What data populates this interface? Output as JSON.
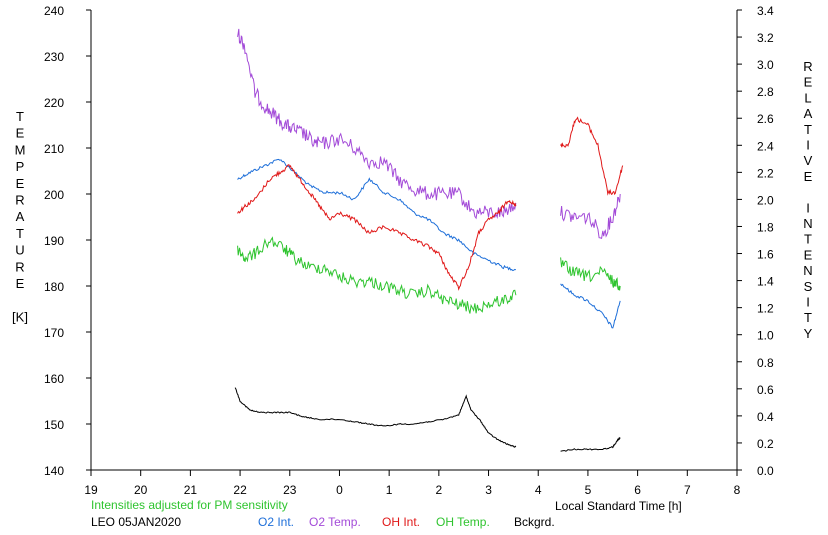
{
  "chart_data": {
    "type": "line",
    "xlabel": "Local Standard Time [h]",
    "ylabel_left": "TEMPERATURE [K]",
    "ylabel_left_letters": [
      "T",
      "E",
      "M",
      "P",
      "E",
      "R",
      "A",
      "T",
      "U",
      "R",
      "E",
      "",
      "[K]"
    ],
    "ylabel_right": "RELATIVE INTENSITY",
    "ylabel_right_letters": [
      "R",
      "E",
      "L",
      "A",
      "T",
      "I",
      "V",
      "E",
      "",
      "I",
      "N",
      "T",
      "E",
      "N",
      "S",
      "I",
      "T",
      "Y"
    ],
    "x_ticks": [
      19,
      20,
      21,
      22,
      23,
      0,
      1,
      2,
      3,
      4,
      5,
      6,
      7,
      8
    ],
    "x_tick_values": [
      19,
      20,
      21,
      22,
      23,
      24,
      25,
      26,
      27,
      28,
      29,
      30,
      31,
      32
    ],
    "xlim": [
      19,
      32
    ],
    "ylim_left": [
      140,
      240
    ],
    "y_ticks_left": [
      140,
      150,
      160,
      170,
      180,
      190,
      200,
      210,
      220,
      230,
      240
    ],
    "ylim_right": [
      0.0,
      3.4
    ],
    "y_ticks_right": [
      "0.0",
      "0.2",
      "0.4",
      "0.6",
      "0.8",
      "1.0",
      "1.2",
      "1.4",
      "1.6",
      "1.8",
      "2.0",
      "2.2",
      "2.4",
      "2.6",
      "2.8",
      "3.0",
      "3.2",
      "3.4"
    ],
    "grid": false,
    "series": [
      {
        "name": "O2 Int.",
        "color": "#1e6fd9",
        "axis": "right",
        "segments": [
          [
            [
              21.95,
              2.15
            ],
            [
              22.2,
              2.2
            ],
            [
              22.5,
              2.25
            ],
            [
              22.8,
              2.3
            ],
            [
              23.1,
              2.2
            ],
            [
              23.4,
              2.1
            ],
            [
              23.7,
              2.05
            ],
            [
              24.0,
              2.05
            ],
            [
              24.3,
              2.0
            ],
            [
              24.6,
              2.15
            ],
            [
              24.9,
              2.05
            ],
            [
              25.2,
              2.0
            ],
            [
              25.5,
              1.9
            ],
            [
              25.8,
              1.85
            ],
            [
              26.1,
              1.75
            ],
            [
              26.4,
              1.7
            ],
            [
              26.7,
              1.6
            ],
            [
              27.0,
              1.55
            ],
            [
              27.3,
              1.5
            ],
            [
              27.55,
              1.48
            ]
          ],
          [
            [
              28.45,
              1.38
            ],
            [
              28.7,
              1.3
            ],
            [
              29.0,
              1.25
            ],
            [
              29.3,
              1.15
            ],
            [
              29.5,
              1.05
            ],
            [
              29.65,
              1.25
            ]
          ]
        ]
      },
      {
        "name": "O2 Temp.",
        "color": "#a34bd8",
        "axis": "left",
        "segments": [
          [
            [
              21.95,
              235
            ],
            [
              22.1,
              232
            ],
            [
              22.3,
              222
            ],
            [
              22.5,
              219
            ],
            [
              22.7,
              217
            ],
            [
              22.9,
              215
            ],
            [
              23.1,
              214
            ],
            [
              23.3,
              213
            ],
            [
              23.5,
              211
            ],
            [
              23.7,
              211
            ],
            [
              24.0,
              212
            ],
            [
              24.3,
              210
            ],
            [
              24.6,
              207
            ],
            [
              24.9,
              207
            ],
            [
              25.2,
              203
            ],
            [
              25.5,
              201
            ],
            [
              25.8,
              200
            ],
            [
              26.1,
              200
            ],
            [
              26.4,
              200
            ],
            [
              26.7,
              196
            ],
            [
              27.0,
              196
            ],
            [
              27.3,
              196
            ],
            [
              27.55,
              198
            ]
          ],
          [
            [
              28.45,
              196
            ],
            [
              28.7,
              195
            ],
            [
              29.0,
              195
            ],
            [
              29.3,
              191
            ],
            [
              29.5,
              195
            ],
            [
              29.65,
              200
            ]
          ]
        ]
      },
      {
        "name": "OH Int.",
        "color": "#e01818",
        "axis": "right",
        "segments": [
          [
            [
              21.95,
              1.9
            ],
            [
              22.1,
              1.95
            ],
            [
              22.3,
              2.0
            ],
            [
              22.6,
              2.15
            ],
            [
              22.8,
              2.2
            ],
            [
              23.0,
              2.25
            ],
            [
              23.2,
              2.15
            ],
            [
              23.4,
              2.05
            ],
            [
              23.6,
              1.95
            ],
            [
              23.8,
              1.85
            ],
            [
              24.0,
              1.9
            ],
            [
              24.3,
              1.85
            ],
            [
              24.6,
              1.75
            ],
            [
              24.9,
              1.8
            ],
            [
              25.2,
              1.75
            ],
            [
              25.5,
              1.7
            ],
            [
              25.8,
              1.65
            ],
            [
              26.0,
              1.6
            ],
            [
              26.2,
              1.45
            ],
            [
              26.4,
              1.35
            ],
            [
              26.6,
              1.5
            ],
            [
              26.8,
              1.75
            ],
            [
              27.0,
              1.85
            ],
            [
              27.2,
              1.9
            ],
            [
              27.4,
              2.0
            ],
            [
              27.55,
              1.95
            ]
          ],
          [
            [
              28.45,
              2.4
            ],
            [
              28.6,
              2.4
            ],
            [
              28.75,
              2.6
            ],
            [
              29.0,
              2.55
            ],
            [
              29.2,
              2.4
            ],
            [
              29.4,
              2.05
            ],
            [
              29.55,
              2.05
            ],
            [
              29.7,
              2.25
            ]
          ]
        ]
      },
      {
        "name": "OH Temp.",
        "color": "#2fc42f",
        "axis": "left",
        "segments": [
          [
            [
              21.95,
              188
            ],
            [
              22.1,
              186
            ],
            [
              22.3,
              187
            ],
            [
              22.6,
              190
            ],
            [
              22.9,
              188
            ],
            [
              23.1,
              186
            ],
            [
              23.4,
              184
            ],
            [
              23.7,
              184
            ],
            [
              24.0,
              182
            ],
            [
              24.3,
              181
            ],
            [
              24.6,
              181
            ],
            [
              24.9,
              180
            ],
            [
              25.2,
              179
            ],
            [
              25.5,
              178
            ],
            [
              25.8,
              179
            ],
            [
              26.1,
              177
            ],
            [
              26.4,
              176
            ],
            [
              26.7,
              175
            ],
            [
              27.0,
              176
            ],
            [
              27.3,
              177
            ],
            [
              27.55,
              178
            ]
          ],
          [
            [
              28.45,
              185
            ],
            [
              28.7,
              183
            ],
            [
              29.0,
              182
            ],
            [
              29.3,
              183
            ],
            [
              29.5,
              181
            ],
            [
              29.65,
              180
            ]
          ]
        ]
      },
      {
        "name": "Bckgrd.",
        "color": "#000000",
        "axis": "left",
        "segments": [
          [
            [
              21.9,
              158
            ],
            [
              22.0,
              155
            ],
            [
              22.2,
              153
            ],
            [
              22.4,
              152.5
            ],
            [
              22.7,
              152.5
            ],
            [
              23.0,
              152.5
            ],
            [
              23.3,
              151.5
            ],
            [
              23.6,
              151
            ],
            [
              24.0,
              151
            ],
            [
              24.3,
              150.5
            ],
            [
              24.6,
              150
            ],
            [
              24.9,
              149.5
            ],
            [
              25.2,
              150
            ],
            [
              25.5,
              150
            ],
            [
              25.8,
              150.5
            ],
            [
              26.1,
              151
            ],
            [
              26.4,
              152
            ],
            [
              26.55,
              156
            ],
            [
              26.65,
              153
            ],
            [
              26.85,
              150.5
            ],
            [
              27.0,
              148
            ],
            [
              27.2,
              146.5
            ],
            [
              27.4,
              145.5
            ],
            [
              27.55,
              145
            ]
          ],
          [
            [
              28.45,
              144
            ],
            [
              28.7,
              144.5
            ],
            [
              29.0,
              144.5
            ],
            [
              29.3,
              144.5
            ],
            [
              29.5,
              145
            ],
            [
              29.6,
              146.5
            ],
            [
              29.65,
              147
            ]
          ]
        ]
      }
    ]
  },
  "footer": {
    "note": "Intensities adjusted for PM sensitivity",
    "note_color": "#2fc42f",
    "station": "LEO 05JAN2020",
    "legend": [
      {
        "label": "O2 Int.",
        "color": "#1e6fd9"
      },
      {
        "label": "O2 Temp.",
        "color": "#a34bd8"
      },
      {
        "label": "OH Int.",
        "color": "#e01818"
      },
      {
        "label": "OH Temp.",
        "color": "#2fc42f"
      },
      {
        "label": "Bckgrd.",
        "color": "#000000"
      }
    ]
  }
}
